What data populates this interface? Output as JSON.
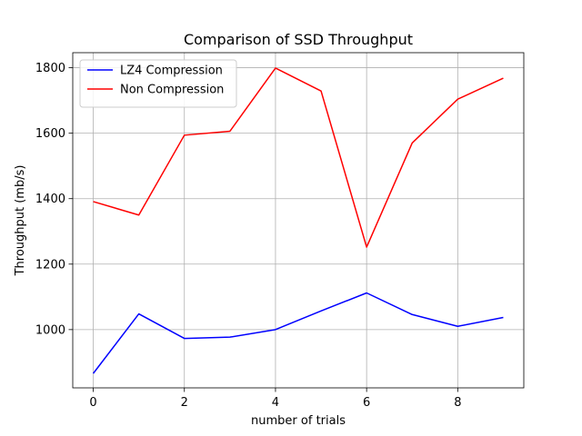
{
  "chart_data": {
    "type": "line",
    "title": "Comparison of SSD Throughput",
    "xlabel": "number of trials",
    "ylabel": "Throughput (mb/s)",
    "x": [
      0,
      1,
      2,
      3,
      4,
      5,
      6,
      7,
      8,
      9
    ],
    "xlim": [
      -0.45,
      9.45
    ],
    "ylim": [
      822,
      1846
    ],
    "xticks": [
      0,
      2,
      4,
      6,
      8
    ],
    "yticks": [
      1000,
      1200,
      1400,
      1600,
      1800
    ],
    "grid": true,
    "legend": "top-left",
    "series": [
      {
        "name": "LZ4 Compression",
        "color": "#0000ff",
        "values": [
          866,
          1048,
          973,
          977,
          1000,
          1057,
          1112,
          1046,
          1010,
          1037
        ]
      },
      {
        "name": "Non Compression",
        "color": "#ff0000",
        "values": [
          1391,
          1350,
          1594,
          1606,
          1799,
          1729,
          1252,
          1570,
          1704,
          1768
        ]
      }
    ]
  }
}
